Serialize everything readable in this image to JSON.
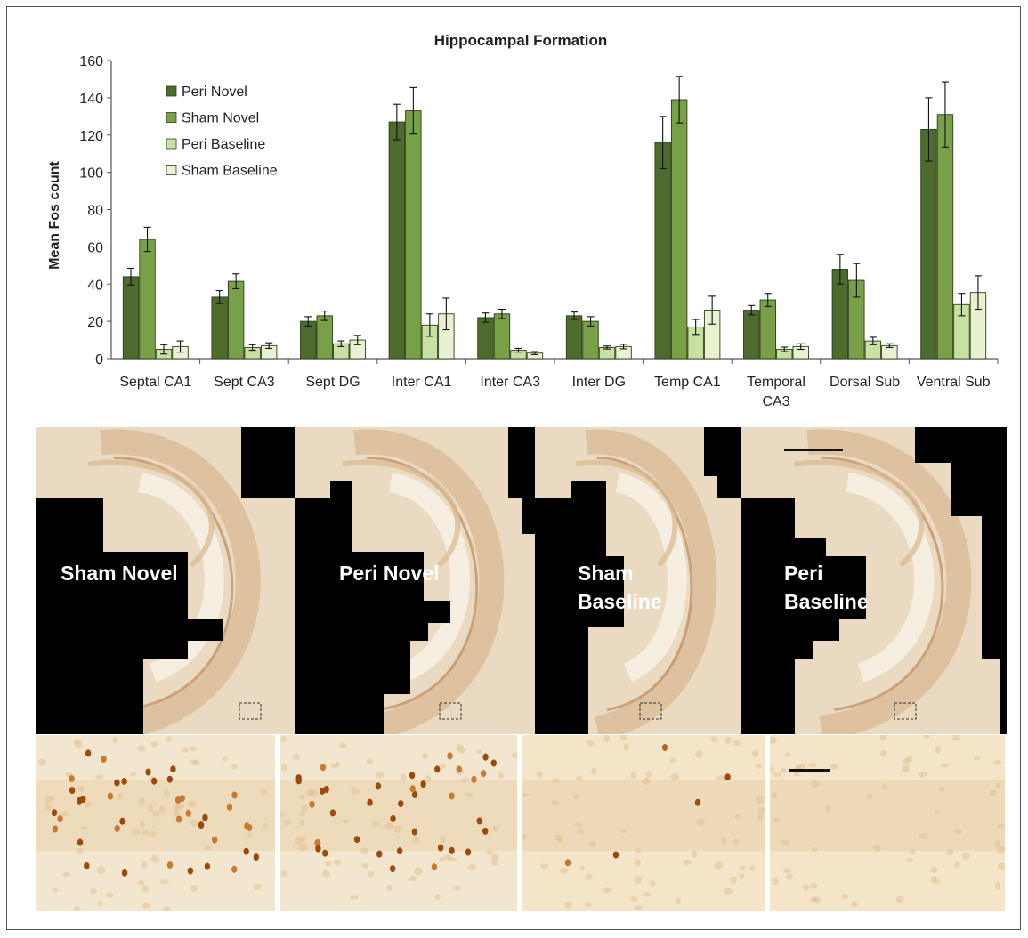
{
  "chart_data": {
    "type": "bar",
    "title": "Hippocampal Formation",
    "ylabel": "Mean Fos count",
    "xlabel": "",
    "ylim": [
      0,
      160
    ],
    "yticks": [
      0,
      20,
      40,
      60,
      80,
      100,
      120,
      140,
      160
    ],
    "categories": [
      "Septal CA1",
      "Sept CA3",
      "Sept DG",
      "Inter CA1",
      "Inter CA3",
      "Inter DG",
      "Temp CA1",
      "Temporal\nCA3",
      "Dorsal Sub",
      "Ventral Sub"
    ],
    "legend_position": "top-left",
    "series": [
      {
        "name": "Peri Novel",
        "color": "#4e6b2e",
        "values": [
          44,
          33,
          20,
          127,
          22,
          23,
          116,
          26,
          48,
          123
        ],
        "errors": [
          4.5,
          3.5,
          2.5,
          9.5,
          2.5,
          2,
          14,
          2.5,
          8,
          17
        ]
      },
      {
        "name": "Sham Novel",
        "color": "#78a046",
        "values": [
          64,
          41.5,
          23,
          133,
          24,
          20,
          139,
          31.5,
          42,
          131
        ],
        "errors": [
          6.5,
          4,
          2.5,
          12.5,
          2.5,
          2.5,
          12.5,
          3.5,
          9,
          17.5
        ]
      },
      {
        "name": "Peri Baseline",
        "color": "#c8e0a2",
        "values": [
          5,
          6,
          8,
          18,
          4.5,
          6,
          17,
          5,
          9.5,
          29
        ],
        "errors": [
          2.5,
          1.5,
          1.5,
          6,
          1,
          0.8,
          4,
          1.2,
          2,
          6
        ]
      },
      {
        "name": "Sham Baseline",
        "color": "#e8f2d2",
        "values": [
          6.5,
          7,
          10,
          24,
          3,
          6.5,
          26,
          6.5,
          7,
          35.5
        ],
        "errors": [
          3,
          1.5,
          2.5,
          8.5,
          0.8,
          1.2,
          7.5,
          1.5,
          1,
          9
        ]
      }
    ]
  },
  "panels": [
    {
      "label": "Sham Novel"
    },
    {
      "label": "Peri Novel"
    },
    {
      "label": "Sham\nBaseline"
    },
    {
      "label": "Peri\nBaseline"
    }
  ],
  "micro_panels": [
    {
      "cell_density": 1.0
    },
    {
      "cell_density": 1.0
    },
    {
      "cell_density": 0.1
    },
    {
      "cell_density": 0.0
    }
  ]
}
